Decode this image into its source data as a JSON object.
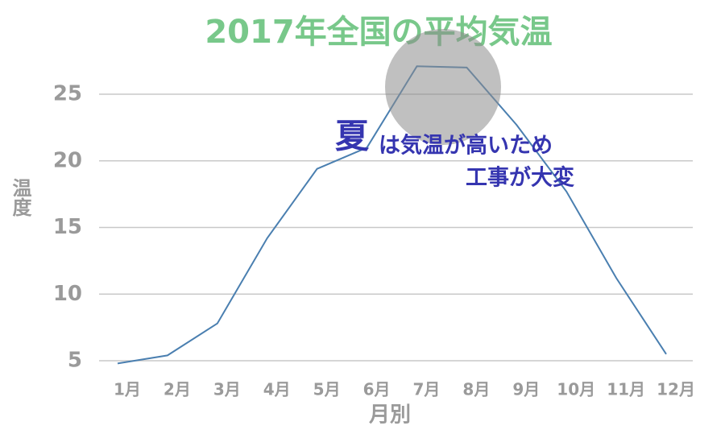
{
  "chart_data": {
    "type": "line",
    "title": "2017年全国の平均気温",
    "x_label": "月別",
    "y_label": "温度",
    "categories": [
      "1月",
      "2月",
      "3月",
      "4月",
      "5月",
      "6月",
      "7月",
      "8月",
      "9月",
      "10月",
      "11月",
      "12月"
    ],
    "values": [
      4.8,
      5.4,
      7.8,
      14.2,
      19.4,
      21.0,
      27.1,
      27.0,
      22.7,
      17.7,
      11.2,
      5.5
    ],
    "color": "#4a7fb0",
    "ylim": [
      4,
      28
    ],
    "yticks": [
      5,
      10,
      15,
      20,
      25
    ],
    "grid": true,
    "annotations": [
      "夏",
      "は気温が高いため",
      "工事が大変"
    ]
  }
}
